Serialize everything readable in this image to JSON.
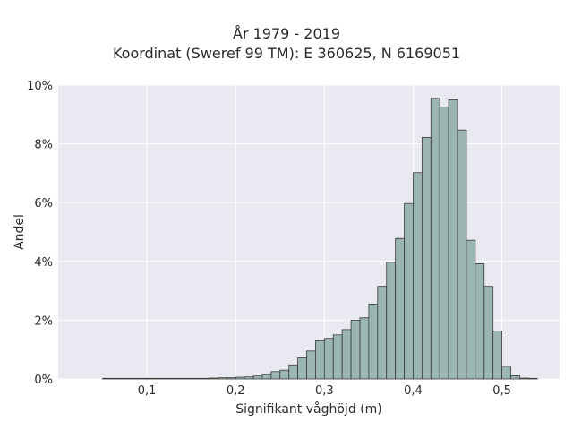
{
  "chart_data": {
    "type": "bar",
    "title_line1": "År 1979 - 2019",
    "title_line2": "Koordinat (Sweref 99 TM): E 360625, N 6169051",
    "xlabel": "Signifikant våghöjd (m)",
    "ylabel": "Andel",
    "xlim": [
      0.0,
      0.565
    ],
    "ylim": [
      0,
      10
    ],
    "bin_width": 0.01,
    "x_ticks": [
      {
        "value": 0.1,
        "label": "0,1"
      },
      {
        "value": 0.2,
        "label": "0,2"
      },
      {
        "value": 0.3,
        "label": "0,3"
      },
      {
        "value": 0.4,
        "label": "0,4"
      },
      {
        "value": 0.5,
        "label": "0,5"
      }
    ],
    "y_ticks": [
      {
        "value": 0,
        "label": "0%"
      },
      {
        "value": 2,
        "label": "2%"
      },
      {
        "value": 4,
        "label": "4%"
      },
      {
        "value": 6,
        "label": "6%"
      },
      {
        "value": 8,
        "label": "8%"
      },
      {
        "value": 10,
        "label": "10%"
      }
    ],
    "grid": true,
    "colors": {
      "bar_fill": "#9bb5b3",
      "bar_stroke": "#3a3a3a",
      "plot_bg": "#e9e9f1",
      "grid": "#ffffff"
    },
    "bins": [
      {
        "x": 0.05,
        "y": 0.02
      },
      {
        "x": 0.06,
        "y": 0.02
      },
      {
        "x": 0.07,
        "y": 0.02
      },
      {
        "x": 0.08,
        "y": 0.02
      },
      {
        "x": 0.09,
        "y": 0.02
      },
      {
        "x": 0.1,
        "y": 0.02
      },
      {
        "x": 0.11,
        "y": 0.02
      },
      {
        "x": 0.12,
        "y": 0.02
      },
      {
        "x": 0.13,
        "y": 0.02
      },
      {
        "x": 0.14,
        "y": 0.02
      },
      {
        "x": 0.15,
        "y": 0.02
      },
      {
        "x": 0.16,
        "y": 0.02
      },
      {
        "x": 0.17,
        "y": 0.03
      },
      {
        "x": 0.18,
        "y": 0.04
      },
      {
        "x": 0.19,
        "y": 0.04
      },
      {
        "x": 0.2,
        "y": 0.06
      },
      {
        "x": 0.21,
        "y": 0.07
      },
      {
        "x": 0.22,
        "y": 0.1
      },
      {
        "x": 0.23,
        "y": 0.15
      },
      {
        "x": 0.24,
        "y": 0.25
      },
      {
        "x": 0.25,
        "y": 0.3
      },
      {
        "x": 0.26,
        "y": 0.48
      },
      {
        "x": 0.27,
        "y": 0.72
      },
      {
        "x": 0.28,
        "y": 0.95
      },
      {
        "x": 0.29,
        "y": 1.3
      },
      {
        "x": 0.3,
        "y": 1.38
      },
      {
        "x": 0.31,
        "y": 1.5
      },
      {
        "x": 0.32,
        "y": 1.68
      },
      {
        "x": 0.33,
        "y": 2.0
      },
      {
        "x": 0.34,
        "y": 2.08
      },
      {
        "x": 0.35,
        "y": 2.55
      },
      {
        "x": 0.36,
        "y": 3.15
      },
      {
        "x": 0.37,
        "y": 3.97
      },
      {
        "x": 0.38,
        "y": 4.78
      },
      {
        "x": 0.39,
        "y": 5.97
      },
      {
        "x": 0.4,
        "y": 7.02
      },
      {
        "x": 0.41,
        "y": 8.22
      },
      {
        "x": 0.42,
        "y": 9.55
      },
      {
        "x": 0.43,
        "y": 9.25
      },
      {
        "x": 0.44,
        "y": 9.5
      },
      {
        "x": 0.45,
        "y": 8.47
      },
      {
        "x": 0.46,
        "y": 4.72
      },
      {
        "x": 0.47,
        "y": 3.92
      },
      {
        "x": 0.48,
        "y": 3.15
      },
      {
        "x": 0.49,
        "y": 1.63
      },
      {
        "x": 0.5,
        "y": 0.43
      },
      {
        "x": 0.51,
        "y": 0.11
      },
      {
        "x": 0.52,
        "y": 0.03
      },
      {
        "x": 0.53,
        "y": 0.02
      }
    ]
  }
}
